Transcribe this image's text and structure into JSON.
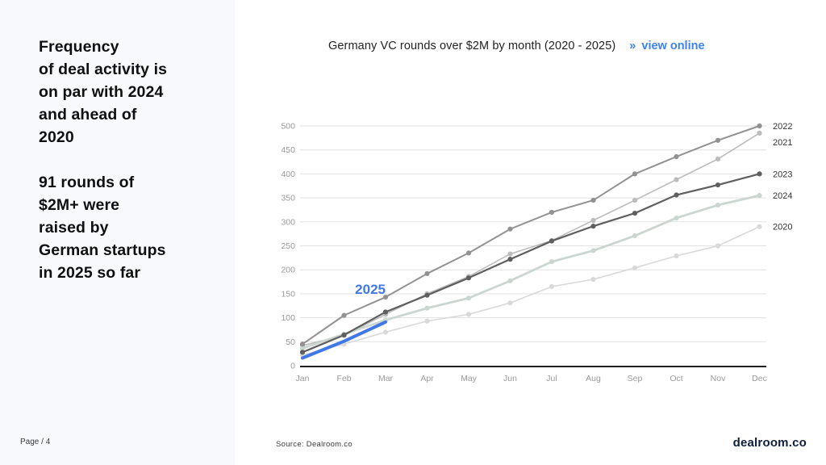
{
  "left_panel": {
    "headline": "Frequency\nof deal activity is\non par with 2024\nand ahead of\n2020",
    "subheadline": "91 rounds of\n$2M+ were\nraised by\nGerman startups\nin 2025 so far",
    "page_label": "Page / 4"
  },
  "header": {
    "title": "Germany VC rounds over $2M by month (2020 - 2025)",
    "link_arrow": "»",
    "link_label": "view online"
  },
  "footer": {
    "source": "Source:  Dealroom.co",
    "logo": "dealroom.co"
  },
  "colors": {
    "accent_blue": "#3d82ee",
    "panel_bg": "#f7f9fc",
    "grid": "#e2e2e2",
    "axis": "#1f1f1f",
    "tick_text": "#9a9a9a",
    "end_label_text": "#333333",
    "logo_navy": "#0e1c3d"
  },
  "chart_data": {
    "type": "line",
    "title": "Germany VC rounds over $2M by month (2020 - 2025)",
    "xlabel": "",
    "ylabel": "",
    "x": [
      "Jan",
      "Feb",
      "Mar",
      "Apr",
      "May",
      "Jun",
      "Jul",
      "Aug",
      "Sep",
      "Oct",
      "Nov",
      "Dec"
    ],
    "ylim": [
      0,
      500
    ],
    "ytick_step": 50,
    "grid": true,
    "legend_position": "line-end-labels-right",
    "inline_label": "2025",
    "series": [
      {
        "name": "2020",
        "color": "#d9d9d9",
        "width": 1.6,
        "markers": true,
        "values": [
          22,
          45,
          70,
          93,
          107,
          131,
          165,
          180,
          204,
          229,
          250,
          290
        ]
      },
      {
        "name": "2021",
        "color": "#bcbcbc",
        "width": 1.6,
        "markers": true,
        "values": [
          42,
          63,
          107,
          150,
          186,
          233,
          261,
          303,
          345,
          388,
          431,
          485
        ]
      },
      {
        "name": "2024",
        "color": "#ccd6d0",
        "width": 2.8,
        "markers": true,
        "values": [
          36,
          66,
          95,
          120,
          141,
          177,
          217,
          240,
          271,
          308,
          335,
          355
        ]
      },
      {
        "name": "2022",
        "color": "#929292",
        "width": 2.0,
        "markers": true,
        "values": [
          45,
          105,
          143,
          192,
          235,
          285,
          320,
          345,
          400,
          436,
          470,
          500
        ]
      },
      {
        "name": "2023",
        "color": "#5f5f5f",
        "width": 2.2,
        "markers": true,
        "values": [
          28,
          64,
          112,
          147,
          183,
          222,
          260,
          291,
          318,
          356,
          377,
          400
        ]
      },
      {
        "name": "2025",
        "color": "#4178e8",
        "width": 4.0,
        "markers": false,
        "values": [
          16,
          51,
          91
        ]
      }
    ]
  }
}
